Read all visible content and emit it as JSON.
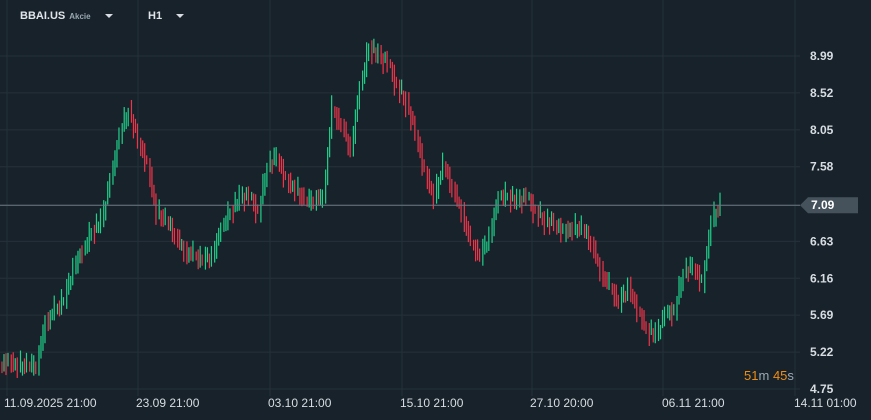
{
  "header": {
    "symbol": "BBAI.US",
    "instrument_type": "Akcie",
    "timeframe": "H1"
  },
  "timer": {
    "minutes": "51",
    "minutes_unit": "m",
    "seconds": "45",
    "seconds_unit": "s"
  },
  "colors": {
    "background": "#18222a",
    "up": "#1fd18a",
    "down": "#f0344a",
    "grid": "#25313a",
    "price_line": "#6b7883",
    "timer": "#ee8d12"
  },
  "chart_data": {
    "type": "candlestick",
    "ylim": [
      4.75,
      9.3
    ],
    "y_ticks": [
      "8.99",
      "8.52",
      "8.05",
      "7.58",
      "7.09",
      "6.63",
      "6.16",
      "5.69",
      "5.22",
      "4.75"
    ],
    "x_ticks": [
      "11.09.2025  21:00",
      "23.09  21:00",
      "03.10  21:00",
      "15.10  21:00",
      "27.10  20:00",
      "06.11  21:00",
      "14.11  01:00"
    ],
    "current_price": "7.09",
    "closes": [
      5.1,
      5.05,
      5.05,
      5.05,
      5.6,
      5.75,
      5.9,
      6.3,
      6.5,
      6.75,
      6.9,
      7.4,
      8.0,
      8.3,
      7.9,
      7.6,
      7.0,
      6.9,
      6.7,
      6.5,
      6.45,
      6.4,
      6.45,
      6.8,
      7.0,
      7.2,
      7.2,
      7.0,
      7.6,
      7.7,
      7.4,
      7.3,
      7.15,
      7.15,
      7.2,
      8.3,
      8.1,
      7.8,
      8.6,
      9.1,
      9.0,
      8.9,
      8.6,
      8.4,
      8.0,
      7.5,
      7.2,
      7.6,
      7.3,
      7.0,
      6.6,
      6.45,
      6.7,
      7.2,
      7.2,
      7.15,
      7.2,
      7.0,
      6.9,
      6.85,
      6.75,
      6.8,
      6.8,
      6.6,
      6.25,
      6.05,
      5.85,
      6.05,
      5.75,
      5.5,
      5.45,
      5.7,
      5.75,
      6.25,
      6.3,
      6.1,
      6.9,
      7.09
    ]
  }
}
